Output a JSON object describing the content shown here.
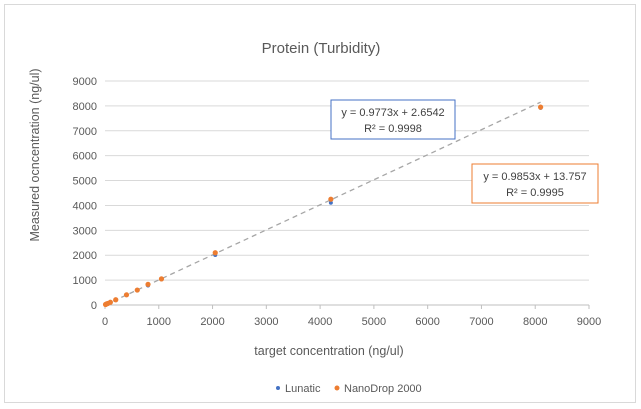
{
  "chart_data": {
    "type": "scatter",
    "title": "Protein (Turbidity)",
    "xlabel": "target concentration (ng/ul)",
    "ylabel": "Measured ocncentration (ng/ul)",
    "xlim": [
      0,
      9000
    ],
    "ylim": [
      0,
      9000
    ],
    "xticks": [
      "0",
      "1000",
      "2000",
      "3000",
      "4000",
      "5000",
      "6000",
      "7000",
      "8000",
      "9000"
    ],
    "yticks": [
      "0",
      "1000",
      "2000",
      "3000",
      "4000",
      "5000",
      "6000",
      "7000",
      "8000",
      "9000"
    ],
    "grid": true,
    "legend_position": "bottom",
    "series": [
      {
        "name": "Lunatic",
        "color": "#4472c4",
        "x": [
          10,
          25,
          50,
          100,
          200,
          400,
          600,
          800,
          1050,
          2050,
          4200,
          8100
        ],
        "y": [
          12,
          27,
          51,
          100,
          198,
          395,
          590,
          785,
          1030,
          2010,
          4110,
          7920
        ]
      },
      {
        "name": "NanoDrop 2000",
        "color": "#ed7d31",
        "x": [
          10,
          25,
          50,
          100,
          200,
          400,
          600,
          800,
          1050,
          2050,
          4200,
          8100
        ],
        "y": [
          20,
          40,
          60,
          110,
          210,
          410,
          600,
          830,
          1050,
          2100,
          4250,
          7950
        ]
      }
    ],
    "trendline": {
      "color": "#a6a6a6",
      "x": [
        0,
        8100
      ],
      "y": [
        0,
        8150
      ]
    },
    "annotations": [
      {
        "line1": "y = 0.9773x + 2.6542",
        "line2": "R² = 0.9998",
        "border_color": "#4472c4"
      },
      {
        "line1": "y = 0.9853x + 13.757",
        "line2": "R² = 0.9995",
        "border_color": "#ed7d31"
      }
    ]
  }
}
